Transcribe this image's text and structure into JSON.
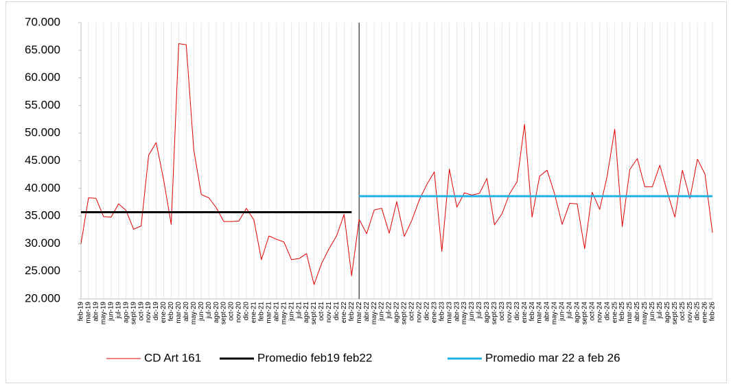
{
  "chart_data": {
    "type": "line",
    "categories": [
      "feb-19",
      "mar-19",
      "abr-19",
      "may-19",
      "jun-19",
      "jul-19",
      "ago-19",
      "sept-19",
      "oct-19",
      "nov-19",
      "dic-19",
      "ene-20",
      "feb-20",
      "mar-20",
      "abr-20",
      "may-20",
      "jun-20",
      "jul-20",
      "ago-20",
      "sept-20",
      "oct-20",
      "nov-20",
      "dic-20",
      "ene-21",
      "feb-21",
      "mar-21",
      "abr-21",
      "may-21",
      "jun-21",
      "jul-21",
      "ago-21",
      "sept-21",
      "oct-21",
      "nov-21",
      "dic-21",
      "ene-22",
      "feb-22",
      "mar-22",
      "abr-22",
      "may-22",
      "jun-22",
      "jul-22",
      "ago-22",
      "sept-22",
      "oct-22",
      "nov-22",
      "dic-22",
      "ene-23",
      "feb-23",
      "mar-23",
      "abr-23",
      "may-23",
      "jun-23",
      "jul-23",
      "ago-23",
      "sept-23",
      "oct-23",
      "nov-23",
      "dic-23",
      "ene-24",
      "feb-24",
      "mar-24",
      "abr-24",
      "may-24",
      "jun-24",
      "jul-24",
      "ago-24",
      "sept-24",
      "oct-24",
      "nov-24",
      "dic-24",
      "ene-25",
      "feb-25",
      "mar-25",
      "abr-25",
      "may-25",
      "jun-25",
      "jul-25",
      "ago-25",
      "sept-25",
      "oct-25",
      "nov-25",
      "dic-25",
      "ene-26",
      "feb-26"
    ],
    "series": [
      {
        "name": "CD Art 161",
        "color": "#e00000",
        "width": 1,
        "values": [
          30000,
          38300,
          38200,
          34900,
          34800,
          37200,
          36000,
          32600,
          33200,
          46000,
          48300,
          41500,
          33500,
          66200,
          66000,
          47000,
          38900,
          38300,
          36500,
          34000,
          34000,
          34100,
          36400,
          34300,
          27100,
          31400,
          30800,
          30300,
          27100,
          27300,
          28200,
          22600,
          26400,
          29100,
          31400,
          35300,
          24200,
          34400,
          31800,
          36100,
          36400,
          31900,
          37600,
          31300,
          34200,
          37900,
          40700,
          43000,
          28600,
          43500,
          36600,
          39200,
          38800,
          39100,
          41800,
          33400,
          35400,
          39000,
          41200,
          51600,
          34800,
          42200,
          43300,
          39000,
          33500,
          37300,
          37200,
          29100,
          39300,
          36200,
          42300,
          50700,
          33100,
          43400,
          45400,
          40300,
          40300,
          44200,
          39300,
          34800,
          43300,
          38200,
          45300,
          42600,
          32000
        ]
      },
      {
        "name": "Promedio feb19 feb22",
        "color": "#000000",
        "width": 3,
        "values": [
          35700,
          35700,
          35700,
          35700,
          35700,
          35700,
          35700,
          35700,
          35700,
          35700,
          35700,
          35700,
          35700,
          35700,
          35700,
          35700,
          35700,
          35700,
          35700,
          35700,
          35700,
          35700,
          35700,
          35700,
          35700,
          35700,
          35700,
          35700,
          35700,
          35700,
          35700,
          35700,
          35700,
          35700,
          35700,
          35700,
          35700,
          null,
          null,
          null,
          null,
          null,
          null,
          null,
          null,
          null,
          null,
          null,
          null,
          null,
          null,
          null,
          null,
          null,
          null,
          null,
          null,
          null,
          null,
          null,
          null,
          null,
          null,
          null,
          null,
          null,
          null,
          null,
          null,
          null,
          null,
          null,
          null,
          null,
          null,
          null,
          null,
          null,
          null,
          null,
          null,
          null,
          null,
          null,
          null
        ]
      },
      {
        "name": "Promedio mar 22 a feb 26",
        "color": "#1fb0e6",
        "width": 3,
        "values": [
          null,
          null,
          null,
          null,
          null,
          null,
          null,
          null,
          null,
          null,
          null,
          null,
          null,
          null,
          null,
          null,
          null,
          null,
          null,
          null,
          null,
          null,
          null,
          null,
          null,
          null,
          null,
          null,
          null,
          null,
          null,
          null,
          null,
          null,
          null,
          null,
          null,
          38600,
          38600,
          38600,
          38600,
          38600,
          38600,
          38600,
          38600,
          38600,
          38600,
          38600,
          38600,
          38600,
          38600,
          38600,
          38600,
          38600,
          38600,
          38600,
          38600,
          38600,
          38600,
          38600,
          38600,
          38600,
          38600,
          38600,
          38600,
          38600,
          38600,
          38600,
          38600,
          38600,
          38600,
          38600,
          38600,
          38600,
          38600,
          38600,
          38600,
          38600,
          38600,
          38600,
          38600,
          38600,
          38600,
          38600,
          38600
        ]
      }
    ],
    "ylim": [
      20000,
      70000
    ],
    "yticks": [
      {
        "value": 20000,
        "label": "20.000"
      },
      {
        "value": 25000,
        "label": "25.000"
      },
      {
        "value": 30000,
        "label": "30.000"
      },
      {
        "value": 35000,
        "label": "35.000"
      },
      {
        "value": 40000,
        "label": "40.000"
      },
      {
        "value": 45000,
        "label": "45.000"
      },
      {
        "value": 50000,
        "label": "50.000"
      },
      {
        "value": 55000,
        "label": "55.000"
      },
      {
        "value": 60000,
        "label": "60.000"
      },
      {
        "value": 65000,
        "label": "65.000"
      },
      {
        "value": 70000,
        "label": "70.000"
      }
    ],
    "xgrid": true,
    "legend": "bottom"
  }
}
